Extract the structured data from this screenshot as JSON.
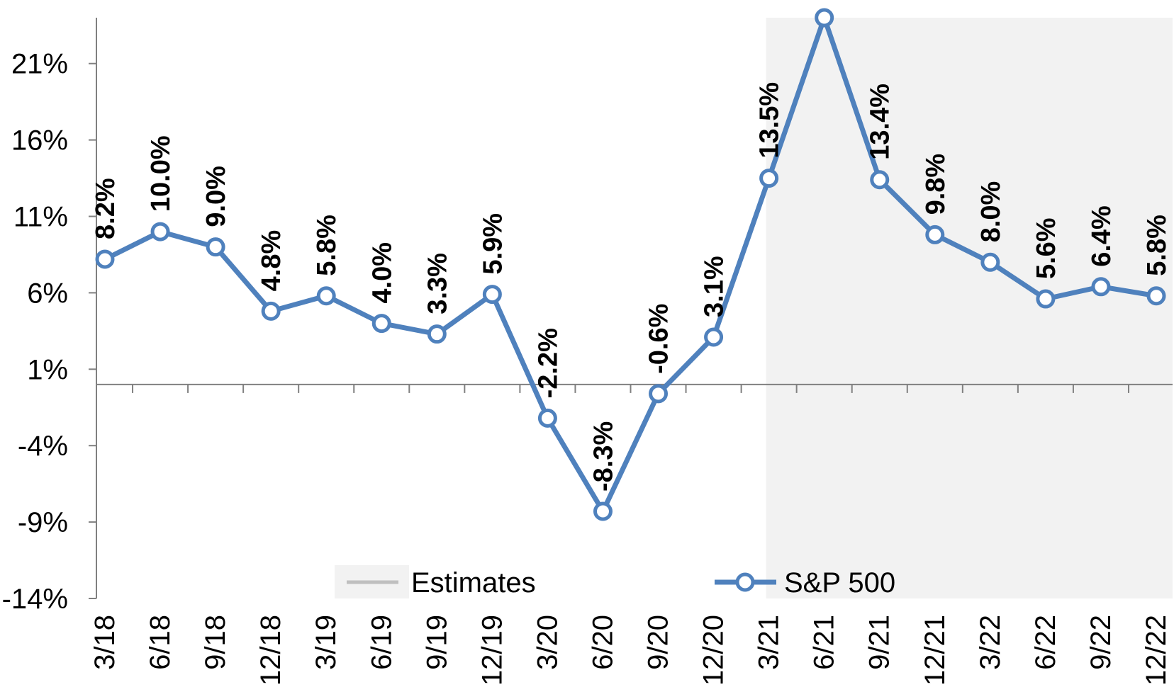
{
  "chart_data": {
    "type": "line",
    "title": "",
    "xlabel": "",
    "ylabel": "",
    "categories": [
      "3/18",
      "6/18",
      "9/18",
      "12/18",
      "3/19",
      "6/19",
      "9/19",
      "12/19",
      "3/20",
      "6/20",
      "9/20",
      "12/20",
      "3/21",
      "6/21",
      "9/21",
      "12/21",
      "3/22",
      "6/22",
      "9/22",
      "12/22"
    ],
    "series": [
      {
        "name": "S&P 500",
        "color": "#4f81bd",
        "values": [
          8.2,
          10.0,
          9.0,
          4.8,
          5.8,
          4.0,
          3.3,
          5.9,
          -2.2,
          -8.3,
          -0.6,
          3.1,
          13.5,
          24.0,
          13.4,
          9.8,
          8.0,
          5.6,
          6.4,
          5.8
        ],
        "labels": [
          "8.2%",
          "10.0%",
          "9.0%",
          "4.8%",
          "5.8%",
          "4.0%",
          "3.3%",
          "5.9%",
          "-2.2%",
          "-8.3%",
          "-0.6%",
          "3.1%",
          "13.5%",
          "",
          "13.4%",
          "9.8%",
          "8.0%",
          "5.6%",
          "6.4%",
          "5.8%"
        ]
      }
    ],
    "estimates": {
      "name": "Estimates",
      "start_category": "3/21",
      "end_category": "12/22",
      "color": "#f2f2f2"
    },
    "ylim": [
      -14,
      24
    ],
    "yticks": [
      21,
      16,
      11,
      6,
      1,
      -4,
      -9,
      -14
    ],
    "ytick_labels": [
      "21%",
      "16%",
      "11%",
      "6%",
      "1%",
      "-4%",
      "-9%",
      "-14%"
    ],
    "legend": [
      {
        "name": "Estimates",
        "marker": "line",
        "color": "#bfbfbf"
      },
      {
        "name": "S&P 500",
        "marker": "line-circle",
        "color": "#4f81bd"
      }
    ],
    "legend_position": "bottom",
    "grid": false
  }
}
